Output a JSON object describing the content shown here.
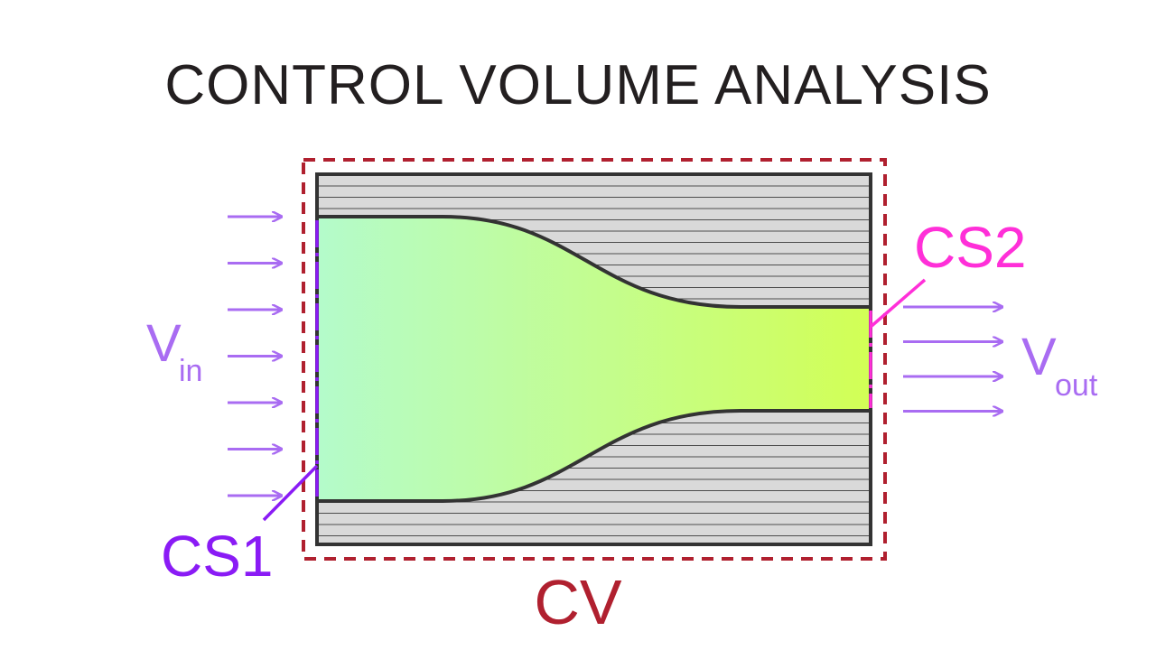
{
  "title": "CONTROL VOLUME ANALYSIS",
  "labels": {
    "cs1": "CS1",
    "cs2": "CS2",
    "cv": "CV",
    "v_in": {
      "symbol": "V",
      "subscript": "in"
    },
    "v_out": {
      "symbol": "V",
      "subscript": "out"
    }
  },
  "colors": {
    "title": "#231f20",
    "control_volume_boundary": "#b0202f",
    "cs1": "#8a1bf5",
    "cs2": "#ff2fd8",
    "velocity_arrows": "#a96cf2",
    "pipe_wall_fill": "#d9d9d9",
    "pipe_wall_hatch": "#4d4d4d",
    "pipe_outline": "#333333",
    "fluid_gradient_start": "#b4fbcb",
    "fluid_gradient_end": "#d2ff55"
  },
  "arrows": {
    "inlet_count": 7,
    "outlet_count": 4
  }
}
